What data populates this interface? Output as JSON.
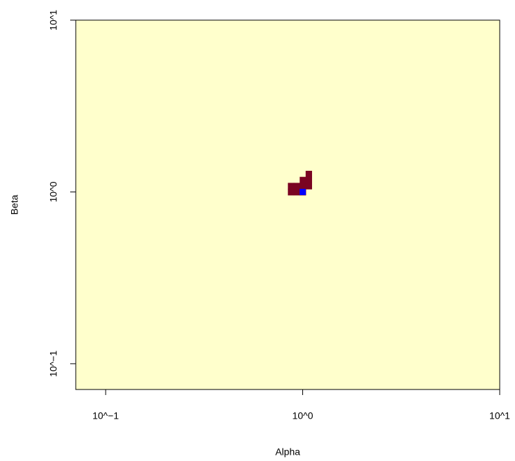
{
  "chart_data": {
    "type": "heatmap",
    "xlabel": "Alpha",
    "ylabel": "Beta",
    "log_x": true,
    "log_y": true,
    "xlim": [
      0.0705,
      10
    ],
    "ylim": [
      0.0708,
      10
    ],
    "xticks": [
      {
        "value": 0.1,
        "label": "10^−1"
      },
      {
        "value": 1,
        "label": "10^0"
      },
      {
        "value": 10,
        "label": "10^1"
      }
    ],
    "yticks": [
      {
        "value": 0.1,
        "label": "10^−1"
      },
      {
        "value": 1,
        "label": "10^0"
      },
      {
        "value": 10,
        "label": "10^1"
      }
    ],
    "background": "#ffffcc",
    "cells": {
      "color": "#7a0422",
      "x": [
        0.871,
        0.933,
        1,
        0.871,
        0.933,
        1,
        1.072,
        1,
        1.072,
        1.072
      ],
      "y": [
        1,
        1,
        1,
        1.084,
        1.084,
        1.084,
        1.084,
        1.175,
        1.175,
        1.274
      ]
    },
    "point": {
      "x": 1,
      "y": 1,
      "color": "#0000ff"
    }
  }
}
